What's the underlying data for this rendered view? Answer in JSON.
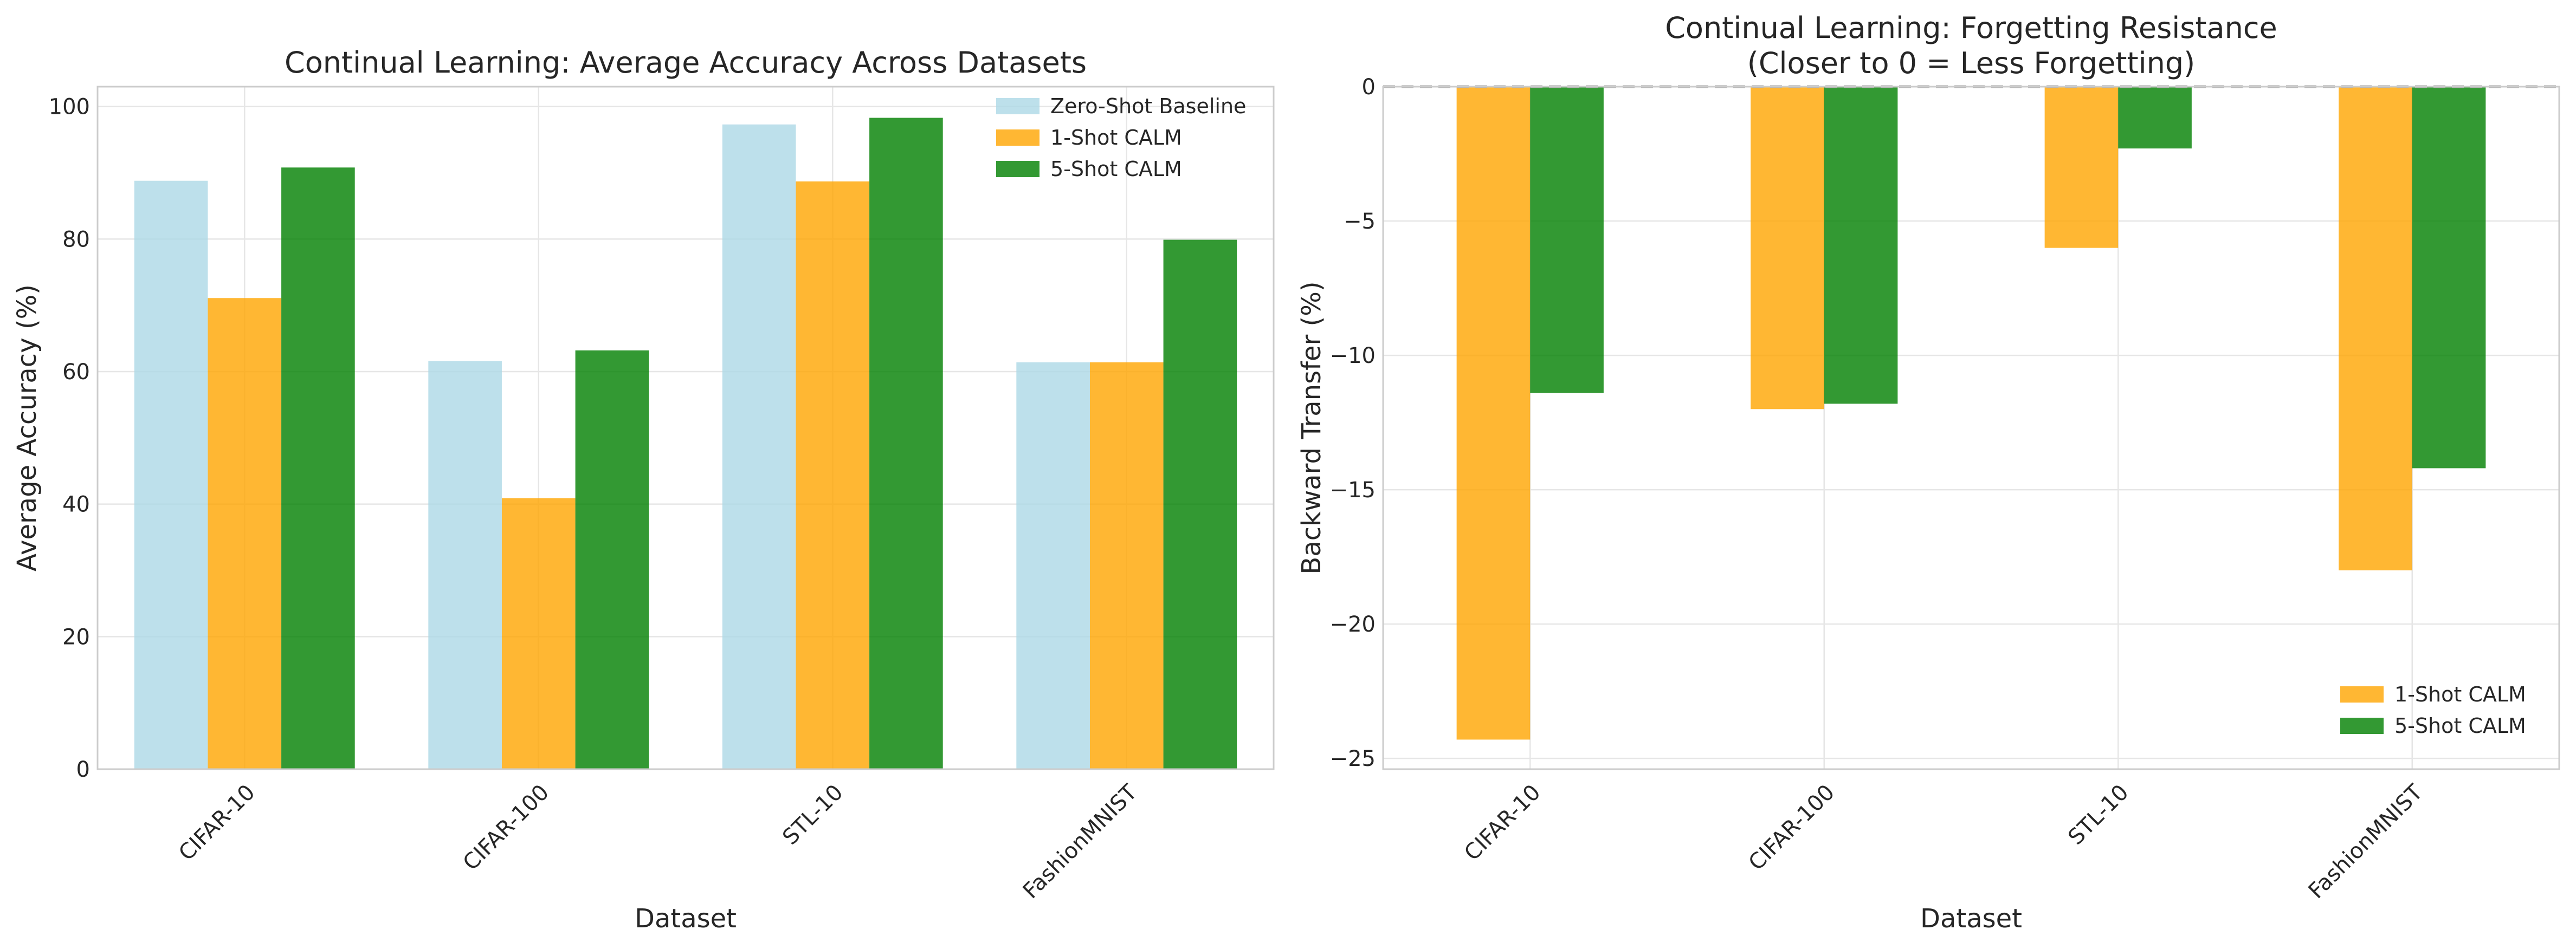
{
  "chart_data": [
    {
      "type": "bar",
      "title": "Continual Learning: Average Accuracy Across Datasets",
      "xlabel": "Dataset",
      "ylabel": "Average Accuracy (%)",
      "categories": [
        "CIFAR-10",
        "CIFAR-100",
        "STL-10",
        "FashionMNIST"
      ],
      "series": [
        {
          "name": "Zero-Shot Baseline",
          "values": [
            88.8,
            61.6,
            97.3,
            61.4
          ],
          "color": "#add8e6"
        },
        {
          "name": "1-Shot CALM",
          "values": [
            71.1,
            40.9,
            88.7,
            61.4
          ],
          "color": "#ffa500"
        },
        {
          "name": "5-Shot CALM",
          "values": [
            90.8,
            63.2,
            98.3,
            79.9
          ],
          "color": "#008000"
        }
      ],
      "ylim": [
        0,
        103
      ],
      "yticks": [
        0,
        20,
        40,
        60,
        80,
        100
      ],
      "grid": true,
      "legend": "top-right"
    },
    {
      "type": "bar",
      "title": "Continual Learning: Forgetting Resistance",
      "subtitle": "(Closer to 0 = Less Forgetting)",
      "xlabel": "Dataset",
      "ylabel": "Backward Transfer (%)",
      "categories": [
        "CIFAR-10",
        "CIFAR-100",
        "STL-10",
        "FashionMNIST"
      ],
      "series": [
        {
          "name": "1-Shot CALM",
          "values": [
            -24.3,
            -12.0,
            -6.0,
            -18.0
          ],
          "color": "#ffa500"
        },
        {
          "name": "5-Shot CALM",
          "values": [
            -11.4,
            -11.8,
            -2.3,
            -14.2
          ],
          "color": "#008000"
        }
      ],
      "ylim": [
        -25.4,
        0
      ],
      "yticks": [
        -25,
        -20,
        -15,
        -10,
        -5,
        0
      ],
      "ytick_labels": [
        "−25",
        "−20",
        "−15",
        "−10",
        "−5",
        "0"
      ],
      "reference_line": 0,
      "grid": true,
      "legend": "bottom-right"
    }
  ]
}
